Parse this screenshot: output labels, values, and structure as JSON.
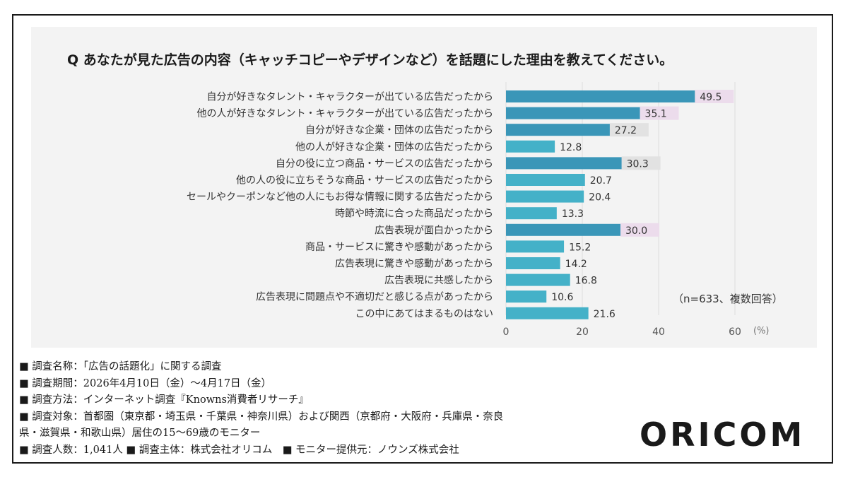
{
  "question": "Q あなたが見た広告の内容（キャッチコピーやデザインなど）を話題にした理由を教えてください。",
  "note": "（n=633、複数回答）",
  "chart_data": {
    "type": "bar",
    "orientation": "horizontal",
    "categories": [
      "自分が好きなタレント・キャラクターが出ている広告だったから",
      "他の人が好きなタレント・キャラクターが出ている広告だったから",
      "自分が好きな企業・団体の広告だったから",
      "他の人が好きな企業・団体の広告だったから",
      "自分の役に立つ商品・サービスの広告だったから",
      "他の人の役に立ちそうな商品・サービスの広告だったから",
      "セールやクーポンなど他の人にもお得な情報に関する広告だったから",
      "時節や時流に合った商品だったから",
      "広告表現が面白かったから",
      "商品・サービスに驚きや感動があったから",
      "広告表現に驚きや感動があったから",
      "広告表現に共感したから",
      "広告表現に問題点や不適切だと感じる点があったから",
      "この中にあてはまるものはない"
    ],
    "values": [
      49.5,
      35.1,
      27.2,
      12.8,
      30.3,
      20.7,
      20.4,
      13.3,
      30.0,
      15.2,
      14.2,
      16.8,
      10.6,
      21.6
    ],
    "value_labels": [
      "49.5",
      "35.1",
      "27.2",
      "12.8",
      "30.3",
      "20.7",
      "20.4",
      "13.3",
      "30.0",
      "15.2",
      "14.2",
      "16.8",
      "10.6",
      "21.6"
    ],
    "highlight": [
      "pink",
      "pink",
      "gray",
      "none",
      "gray",
      "none",
      "none",
      "none",
      "pink",
      "none",
      "none",
      "none",
      "none",
      "none"
    ],
    "xlim": [
      0,
      60
    ],
    "xticks": [
      0,
      20,
      40,
      60
    ],
    "xtick_labels": [
      "0",
      "20",
      "40",
      "60"
    ],
    "unit": "(%)",
    "grid": true,
    "colors": {
      "bar": "#44b1c8",
      "bar_dark": "#3a96b8",
      "highlight_pink": "#ecdcec",
      "highlight_gray": "#e2e2e2",
      "grid": "#dddddd"
    }
  },
  "footer": [
    "■ 調査名称：「広告の話題化」に関する調査",
    "■ 調査期間：2026年4月10日（金）～4月17日（金）",
    "■ 調査方法：インターネット調査『Knowns消費者リサーチ』",
    "■ 調査対象：首都圏（東京都・埼玉県・千葉県・神奈川県）および関西（京都府・大阪府・兵庫県・奈良",
    "県・滋賀県・和歌山県）居住の15～69歳のモニター",
    "■ 調査人数：1,041人 ■ 調査主体：株式会社オリコム　■ モニター提供元：ノウンズ株式会社"
  ],
  "logo": "ORICOM"
}
